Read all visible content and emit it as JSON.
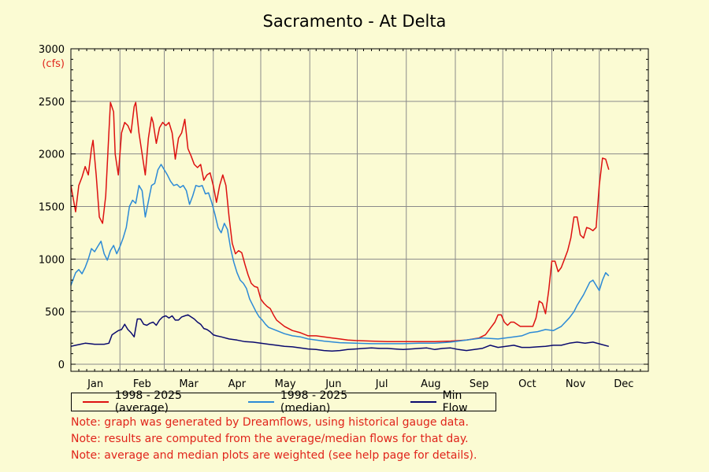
{
  "chart_data": {
    "type": "line",
    "title": "Sacramento - At Delta",
    "y_unit": "(cfs)",
    "ylim": [
      0,
      3000
    ],
    "y_ticks": [
      0,
      500,
      1000,
      1500,
      2000,
      2500,
      3000
    ],
    "months": [
      "Jan",
      "Feb",
      "Mar",
      "Apr",
      "May",
      "Jun",
      "Jul",
      "Aug",
      "Sep",
      "Oct",
      "Nov",
      "Dec"
    ],
    "grid": true,
    "legend_position": "bottom",
    "series": [
      {
        "name": "1998 - 2025 (average)",
        "color": "#dd1111",
        "points": [
          [
            0,
            1700
          ],
          [
            3,
            1450
          ],
          [
            5,
            1700
          ],
          [
            7,
            1780
          ],
          [
            9,
            1880
          ],
          [
            11,
            1800
          ],
          [
            13,
            2050
          ],
          [
            14,
            2130
          ],
          [
            16,
            1800
          ],
          [
            18,
            1400
          ],
          [
            20,
            1340
          ],
          [
            22,
            1600
          ],
          [
            24,
            2200
          ],
          [
            25,
            2490
          ],
          [
            27,
            2400
          ],
          [
            28,
            2000
          ],
          [
            30,
            1800
          ],
          [
            32,
            2200
          ],
          [
            34,
            2300
          ],
          [
            36,
            2270
          ],
          [
            38,
            2200
          ],
          [
            40,
            2450
          ],
          [
            41,
            2490
          ],
          [
            43,
            2200
          ],
          [
            45,
            2000
          ],
          [
            47,
            1800
          ],
          [
            49,
            2150
          ],
          [
            51,
            2350
          ],
          [
            52,
            2300
          ],
          [
            54,
            2100
          ],
          [
            56,
            2250
          ],
          [
            58,
            2300
          ],
          [
            60,
            2270
          ],
          [
            62,
            2300
          ],
          [
            64,
            2200
          ],
          [
            66,
            1950
          ],
          [
            68,
            2150
          ],
          [
            70,
            2200
          ],
          [
            72,
            2330
          ],
          [
            74,
            2050
          ],
          [
            76,
            1980
          ],
          [
            78,
            1900
          ],
          [
            80,
            1870
          ],
          [
            82,
            1900
          ],
          [
            84,
            1750
          ],
          [
            86,
            1800
          ],
          [
            88,
            1820
          ],
          [
            90,
            1700
          ],
          [
            92,
            1540
          ],
          [
            94,
            1700
          ],
          [
            96,
            1800
          ],
          [
            98,
            1700
          ],
          [
            100,
            1400
          ],
          [
            102,
            1150
          ],
          [
            104,
            1050
          ],
          [
            106,
            1080
          ],
          [
            108,
            1060
          ],
          [
            110,
            950
          ],
          [
            112,
            850
          ],
          [
            114,
            770
          ],
          [
            116,
            740
          ],
          [
            118,
            730
          ],
          [
            120,
            620
          ],
          [
            122,
            580
          ],
          [
            124,
            550
          ],
          [
            126,
            530
          ],
          [
            128,
            470
          ],
          [
            130,
            420
          ],
          [
            135,
            360
          ],
          [
            140,
            320
          ],
          [
            145,
            300
          ],
          [
            150,
            270
          ],
          [
            155,
            270
          ],
          [
            160,
            260
          ],
          [
            165,
            250
          ],
          [
            170,
            240
          ],
          [
            175,
            230
          ],
          [
            180,
            225
          ],
          [
            190,
            220
          ],
          [
            200,
            215
          ],
          [
            210,
            215
          ],
          [
            220,
            215
          ],
          [
            230,
            215
          ],
          [
            240,
            220
          ],
          [
            250,
            230
          ],
          [
            258,
            250
          ],
          [
            262,
            280
          ],
          [
            265,
            340
          ],
          [
            268,
            400
          ],
          [
            270,
            470
          ],
          [
            272,
            470
          ],
          [
            274,
            400
          ],
          [
            276,
            370
          ],
          [
            278,
            400
          ],
          [
            280,
            400
          ],
          [
            284,
            360
          ],
          [
            288,
            360
          ],
          [
            292,
            360
          ],
          [
            294,
            440
          ],
          [
            296,
            600
          ],
          [
            298,
            580
          ],
          [
            300,
            480
          ],
          [
            302,
            700
          ],
          [
            304,
            980
          ],
          [
            306,
            980
          ],
          [
            308,
            880
          ],
          [
            310,
            920
          ],
          [
            312,
            1000
          ],
          [
            314,
            1080
          ],
          [
            316,
            1200
          ],
          [
            318,
            1400
          ],
          [
            320,
            1400
          ],
          [
            322,
            1230
          ],
          [
            324,
            1200
          ],
          [
            326,
            1300
          ],
          [
            328,
            1290
          ],
          [
            330,
            1270
          ],
          [
            332,
            1300
          ],
          [
            334,
            1700
          ],
          [
            336,
            1960
          ],
          [
            338,
            1950
          ],
          [
            340,
            1850
          ]
        ]
      },
      {
        "name": "1998 - 2025 (median)",
        "color": "#2c8ad6",
        "points": [
          [
            0,
            750
          ],
          [
            3,
            870
          ],
          [
            5,
            900
          ],
          [
            7,
            860
          ],
          [
            9,
            920
          ],
          [
            11,
            1000
          ],
          [
            13,
            1100
          ],
          [
            15,
            1070
          ],
          [
            17,
            1120
          ],
          [
            19,
            1170
          ],
          [
            21,
            1050
          ],
          [
            23,
            990
          ],
          [
            25,
            1080
          ],
          [
            27,
            1130
          ],
          [
            29,
            1050
          ],
          [
            31,
            1120
          ],
          [
            33,
            1200
          ],
          [
            35,
            1300
          ],
          [
            37,
            1500
          ],
          [
            39,
            1560
          ],
          [
            41,
            1530
          ],
          [
            43,
            1700
          ],
          [
            45,
            1650
          ],
          [
            47,
            1400
          ],
          [
            49,
            1550
          ],
          [
            51,
            1700
          ],
          [
            53,
            1720
          ],
          [
            55,
            1850
          ],
          [
            57,
            1900
          ],
          [
            59,
            1850
          ],
          [
            61,
            1800
          ],
          [
            63,
            1740
          ],
          [
            65,
            1700
          ],
          [
            67,
            1710
          ],
          [
            69,
            1680
          ],
          [
            71,
            1700
          ],
          [
            73,
            1650
          ],
          [
            75,
            1520
          ],
          [
            77,
            1600
          ],
          [
            79,
            1700
          ],
          [
            81,
            1690
          ],
          [
            83,
            1700
          ],
          [
            85,
            1620
          ],
          [
            87,
            1630
          ],
          [
            89,
            1540
          ],
          [
            91,
            1430
          ],
          [
            93,
            1300
          ],
          [
            95,
            1250
          ],
          [
            97,
            1340
          ],
          [
            99,
            1280
          ],
          [
            101,
            1100
          ],
          [
            103,
            970
          ],
          [
            105,
            870
          ],
          [
            107,
            800
          ],
          [
            109,
            770
          ],
          [
            111,
            720
          ],
          [
            113,
            620
          ],
          [
            115,
            560
          ],
          [
            117,
            500
          ],
          [
            119,
            450
          ],
          [
            121,
            420
          ],
          [
            123,
            380
          ],
          [
            125,
            350
          ],
          [
            130,
            320
          ],
          [
            135,
            290
          ],
          [
            140,
            270
          ],
          [
            145,
            260
          ],
          [
            150,
            240
          ],
          [
            155,
            230
          ],
          [
            160,
            220
          ],
          [
            170,
            205
          ],
          [
            180,
            200
          ],
          [
            190,
            195
          ],
          [
            200,
            195
          ],
          [
            210,
            195
          ],
          [
            220,
            200
          ],
          [
            230,
            200
          ],
          [
            240,
            210
          ],
          [
            250,
            230
          ],
          [
            260,
            250
          ],
          [
            270,
            240
          ],
          [
            280,
            260
          ],
          [
            285,
            270
          ],
          [
            290,
            300
          ],
          [
            295,
            310
          ],
          [
            300,
            330
          ],
          [
            305,
            320
          ],
          [
            310,
            360
          ],
          [
            315,
            440
          ],
          [
            318,
            500
          ],
          [
            320,
            560
          ],
          [
            324,
            660
          ],
          [
            328,
            780
          ],
          [
            330,
            800
          ],
          [
            332,
            750
          ],
          [
            334,
            700
          ],
          [
            336,
            800
          ],
          [
            338,
            870
          ],
          [
            340,
            840
          ]
        ]
      },
      {
        "name": "Min Flow",
        "color": "#0a0a6e",
        "points": [
          [
            0,
            170
          ],
          [
            3,
            180
          ],
          [
            6,
            190
          ],
          [
            9,
            200
          ],
          [
            12,
            195
          ],
          [
            15,
            190
          ],
          [
            18,
            190
          ],
          [
            21,
            190
          ],
          [
            24,
            200
          ],
          [
            26,
            280
          ],
          [
            28,
            300
          ],
          [
            30,
            320
          ],
          [
            32,
            330
          ],
          [
            34,
            380
          ],
          [
            36,
            330
          ],
          [
            38,
            300
          ],
          [
            40,
            260
          ],
          [
            42,
            430
          ],
          [
            44,
            430
          ],
          [
            46,
            380
          ],
          [
            48,
            370
          ],
          [
            50,
            390
          ],
          [
            52,
            400
          ],
          [
            54,
            370
          ],
          [
            56,
            420
          ],
          [
            58,
            450
          ],
          [
            60,
            460
          ],
          [
            62,
            440
          ],
          [
            64,
            460
          ],
          [
            66,
            420
          ],
          [
            68,
            420
          ],
          [
            70,
            450
          ],
          [
            72,
            460
          ],
          [
            74,
            470
          ],
          [
            76,
            450
          ],
          [
            78,
            430
          ],
          [
            80,
            400
          ],
          [
            82,
            380
          ],
          [
            84,
            340
          ],
          [
            86,
            330
          ],
          [
            88,
            310
          ],
          [
            90,
            280
          ],
          [
            92,
            270
          ],
          [
            95,
            260
          ],
          [
            100,
            240
          ],
          [
            105,
            230
          ],
          [
            110,
            215
          ],
          [
            115,
            210
          ],
          [
            120,
            200
          ],
          [
            125,
            190
          ],
          [
            130,
            180
          ],
          [
            135,
            170
          ],
          [
            140,
            165
          ],
          [
            145,
            155
          ],
          [
            150,
            145
          ],
          [
            155,
            140
          ],
          [
            160,
            130
          ],
          [
            165,
            125
          ],
          [
            170,
            130
          ],
          [
            175,
            140
          ],
          [
            180,
            145
          ],
          [
            185,
            150
          ],
          [
            190,
            155
          ],
          [
            195,
            150
          ],
          [
            200,
            150
          ],
          [
            205,
            145
          ],
          [
            210,
            140
          ],
          [
            215,
            145
          ],
          [
            220,
            150
          ],
          [
            225,
            155
          ],
          [
            230,
            140
          ],
          [
            235,
            150
          ],
          [
            240,
            155
          ],
          [
            245,
            140
          ],
          [
            250,
            130
          ],
          [
            255,
            140
          ],
          [
            260,
            150
          ],
          [
            265,
            180
          ],
          [
            270,
            160
          ],
          [
            275,
            170
          ],
          [
            280,
            180
          ],
          [
            285,
            160
          ],
          [
            290,
            160
          ],
          [
            295,
            165
          ],
          [
            300,
            170
          ],
          [
            305,
            180
          ],
          [
            310,
            180
          ],
          [
            315,
            200
          ],
          [
            320,
            210
          ],
          [
            325,
            200
          ],
          [
            330,
            210
          ],
          [
            335,
            190
          ],
          [
            340,
            170
          ]
        ]
      }
    ]
  },
  "notes": [
    "Note: graph was generated by Dreamflows, using historical gauge data.",
    "Note: results are computed from the average/median flows for that day.",
    "Note: average and median plots are weighted (see help page for details)."
  ]
}
